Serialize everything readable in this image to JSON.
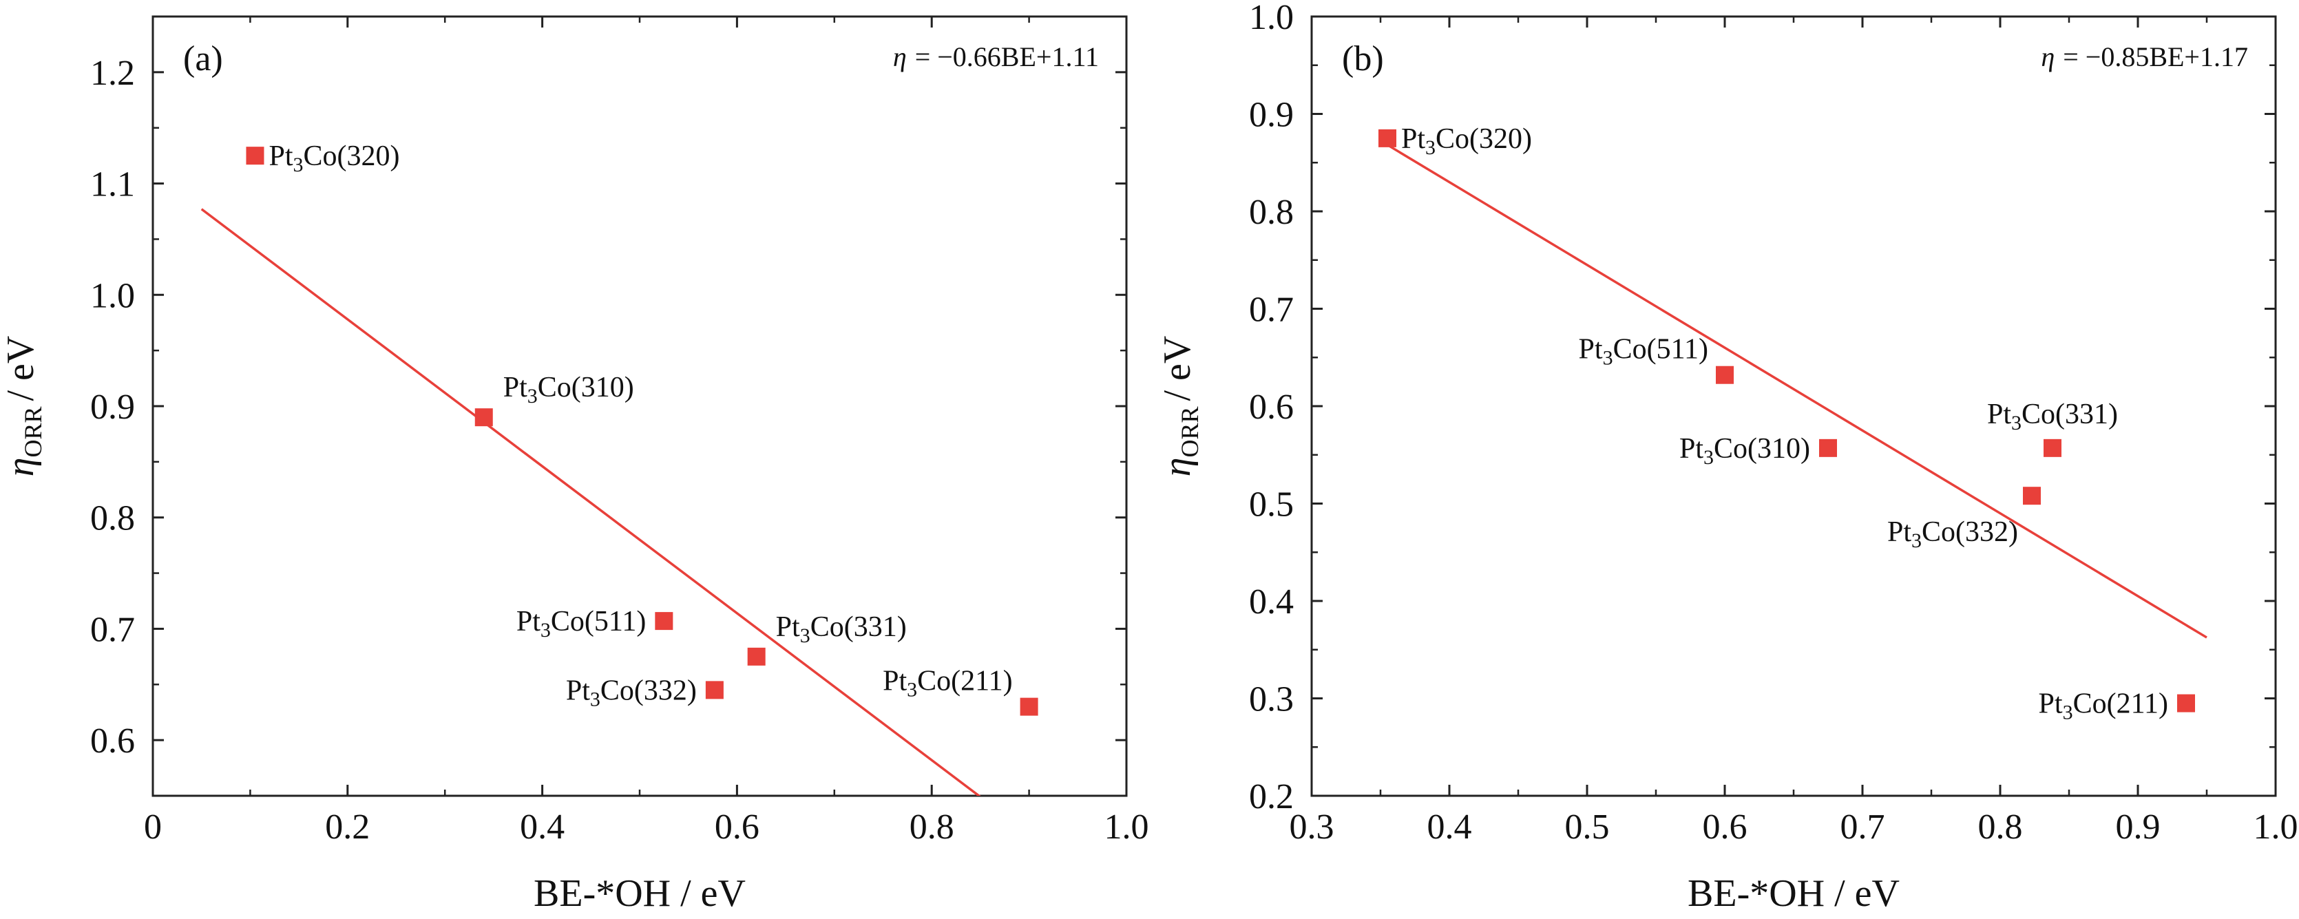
{
  "chart_data": [
    {
      "type": "scatter",
      "panel_label": "(a)",
      "equation_symbol": "η",
      "equation_text": "= −0.66BE+1.11",
      "xlabel": "BE-*OH / eV",
      "ylabel_symbol": "η",
      "ylabel_subscript": "ORR",
      "ylabel_unit": "/ eV",
      "xlim": [
        0,
        1.0
      ],
      "ylim": [
        0.55,
        1.25
      ],
      "xticks": [
        0,
        0.2,
        0.4,
        0.6,
        0.8,
        1.0
      ],
      "xtick_labels": [
        "0",
        "0.2",
        "0.4",
        "0.6",
        "0.8",
        "1.0"
      ],
      "yticks": [
        0.6,
        0.7,
        0.8,
        0.9,
        1.0,
        1.1,
        1.2
      ],
      "ytick_labels": [
        "0.6",
        "0.7",
        "0.8",
        "0.9",
        "1.0",
        "1.1",
        "1.2"
      ],
      "marker_color": "#e8403a",
      "fit_color": "#e8403a",
      "fit": {
        "slope": -0.66,
        "intercept": 1.11,
        "x_range": [
          0.05,
          0.86
        ]
      },
      "points": [
        {
          "label_main": "Pt",
          "label_sub": "3",
          "label_rest": "Co(320)",
          "x": 0.105,
          "y": 1.125,
          "label_side": "right"
        },
        {
          "label_main": "Pt",
          "label_sub": "3",
          "label_rest": "Co(310)",
          "x": 0.34,
          "y": 0.89,
          "label_side": "upper-right"
        },
        {
          "label_main": "Pt",
          "label_sub": "3",
          "label_rest": "Co(511)",
          "x": 0.525,
          "y": 0.707,
          "label_side": "left"
        },
        {
          "label_main": "Pt",
          "label_sub": "3",
          "label_rest": "Co(331)",
          "x": 0.62,
          "y": 0.675,
          "label_side": "upper-right"
        },
        {
          "label_main": "Pt",
          "label_sub": "3",
          "label_rest": "Co(332)",
          "x": 0.577,
          "y": 0.645,
          "label_side": "left"
        },
        {
          "label_main": "Pt",
          "label_sub": "3",
          "label_rest": "Co(211)",
          "x": 0.9,
          "y": 0.63,
          "label_side": "upper-left"
        }
      ]
    },
    {
      "type": "scatter",
      "panel_label": "(b)",
      "equation_symbol": "η",
      "equation_text": "= −0.85BE+1.17",
      "xlabel": "BE-*OH / eV",
      "ylabel_symbol": "η",
      "ylabel_subscript": "ORR",
      "ylabel_unit": "/ eV",
      "xlim": [
        0.3,
        1.0
      ],
      "ylim": [
        0.2,
        1.0
      ],
      "xticks": [
        0.3,
        0.4,
        0.5,
        0.6,
        0.7,
        0.8,
        0.9,
        1.0
      ],
      "xtick_labels": [
        "0.3",
        "0.4",
        "0.5",
        "0.6",
        "0.7",
        "0.8",
        "0.9",
        "1.0"
      ],
      "yticks": [
        0.2,
        0.3,
        0.4,
        0.5,
        0.6,
        0.7,
        0.8,
        0.9,
        1.0
      ],
      "ytick_labels": [
        "0.2",
        "0.3",
        "0.4",
        "0.5",
        "0.6",
        "0.7",
        "0.8",
        "0.9",
        "1.0"
      ],
      "marker_color": "#e8403a",
      "fit_color": "#e8403a",
      "fit": {
        "slope": -0.85,
        "intercept": 1.17,
        "x_range": [
          0.355,
          0.95
        ]
      },
      "points": [
        {
          "label_main": "Pt",
          "label_sub": "3",
          "label_rest": "Co(320)",
          "x": 0.355,
          "y": 0.875,
          "label_side": "right"
        },
        {
          "label_main": "Pt",
          "label_sub": "3",
          "label_rest": "Co(511)",
          "x": 0.6,
          "y": 0.632,
          "label_side": "upper-left"
        },
        {
          "label_main": "Pt",
          "label_sub": "3",
          "label_rest": "Co(310)",
          "x": 0.675,
          "y": 0.557,
          "label_side": "left"
        },
        {
          "label_main": "Pt",
          "label_sub": "3",
          "label_rest": "Co(331)",
          "x": 0.838,
          "y": 0.557,
          "label_side": "above"
        },
        {
          "label_main": "Pt",
          "label_sub": "3",
          "label_rest": "Co(332)",
          "x": 0.823,
          "y": 0.508,
          "label_side": "below-left"
        },
        {
          "label_main": "Pt",
          "label_sub": "3",
          "label_rest": "Co(211)",
          "x": 0.935,
          "y": 0.295,
          "label_side": "left"
        }
      ]
    }
  ]
}
